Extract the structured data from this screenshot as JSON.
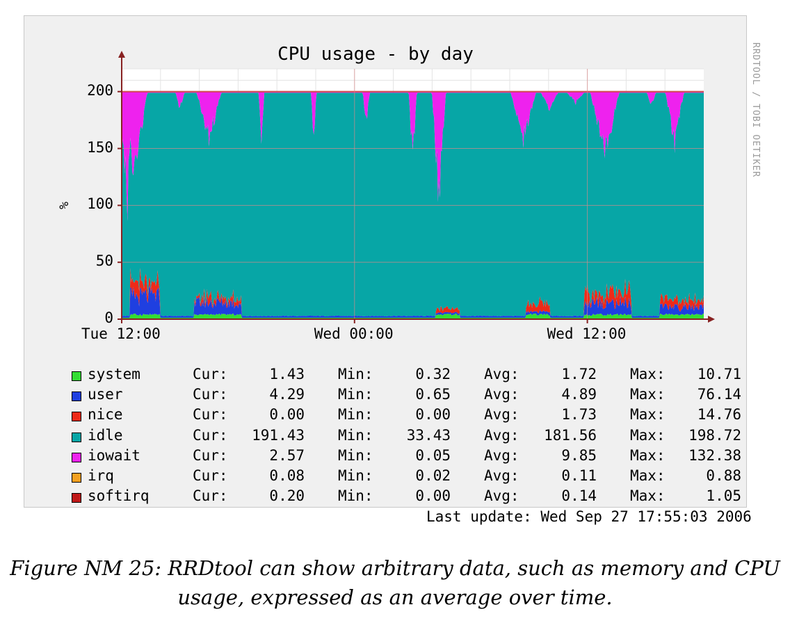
{
  "chart_data": {
    "type": "area",
    "title": "CPU usage - by day",
    "ylabel": "%",
    "watermark": "RRDTOOL / TOBI OETIKER",
    "ylim": [
      0,
      220
    ],
    "yticks": [
      0,
      50,
      100,
      150,
      200
    ],
    "x_range": [
      0,
      100
    ],
    "xticks": [
      {
        "pos": 0,
        "label": "Tue 12:00"
      },
      {
        "pos": 40,
        "label": "Wed 00:00"
      },
      {
        "pos": 80,
        "label": "Wed 12:00"
      }
    ],
    "grid": true,
    "total": 200,
    "series": [
      {
        "name": "system",
        "color": "#33dd33",
        "cur": "1.43",
        "min": "0.32",
        "avg": "1.72",
        "max": "10.71"
      },
      {
        "name": "user",
        "color": "#1f3fe0",
        "cur": "4.29",
        "min": "0.65",
        "avg": "4.89",
        "max": "76.14"
      },
      {
        "name": "nice",
        "color": "#ee2a18",
        "cur": "0.00",
        "min": "0.00",
        "avg": "1.73",
        "max": "14.76"
      },
      {
        "name": "idle",
        "color": "#07a6a6",
        "cur": "191.43",
        "min": "33.43",
        "avg": "181.56",
        "max": "198.72"
      },
      {
        "name": "iowait",
        "color": "#ee22ee",
        "cur": "2.57",
        "min": "0.05",
        "avg": "9.85",
        "max": "132.38"
      },
      {
        "name": "irq",
        "color": "#f4a020",
        "cur": "0.08",
        "min": "0.02",
        "avg": "0.11",
        "max": "0.88"
      },
      {
        "name": "softirq",
        "color": "#c01818",
        "cur": "0.20",
        "min": "0.00",
        "avg": "0.14",
        "max": "1.05"
      }
    ],
    "iowait_spikes": [
      {
        "x": 0.5,
        "depth": 75,
        "w": 1.4
      },
      {
        "x": 1.0,
        "depth": 130,
        "w": 0.6
      },
      {
        "x": 2.2,
        "depth": 95,
        "w": 2.2
      },
      {
        "x": 3.5,
        "depth": 20,
        "w": 0.8
      },
      {
        "x": 10.0,
        "depth": 18,
        "w": 0.8
      },
      {
        "x": 15.0,
        "depth": 50,
        "w": 2.2
      },
      {
        "x": 24.0,
        "depth": 50,
        "w": 0.5
      },
      {
        "x": 33.0,
        "depth": 50,
        "w": 0.5
      },
      {
        "x": 42.0,
        "depth": 35,
        "w": 0.6
      },
      {
        "x": 50.0,
        "depth": 75,
        "w": 0.7
      },
      {
        "x": 54.5,
        "depth": 118,
        "w": 1.2
      },
      {
        "x": 69.0,
        "depth": 50,
        "w": 2.2
      },
      {
        "x": 73.5,
        "depth": 18,
        "w": 1.6
      },
      {
        "x": 78.0,
        "depth": 12,
        "w": 1.6
      },
      {
        "x": 83.0,
        "depth": 70,
        "w": 2.5
      },
      {
        "x": 91.0,
        "depth": 15,
        "w": 0.8
      },
      {
        "x": 95.0,
        "depth": 55,
        "w": 1.6
      }
    ],
    "activity_bursts": [
      {
        "x": 1.5,
        "w": 5.0,
        "user": 20,
        "nice": 16
      },
      {
        "x": 12.5,
        "w": 8.0,
        "user": 13,
        "nice": 7
      },
      {
        "x": 54.0,
        "w": 4.0,
        "user": 1,
        "nice": 5
      },
      {
        "x": 69.5,
        "w": 4.0,
        "user": 3,
        "nice": 11
      },
      {
        "x": 79.5,
        "w": 8.0,
        "user": 13,
        "nice": 15
      },
      {
        "x": 92.5,
        "w": 8.0,
        "user": 8,
        "nice": 9
      }
    ]
  },
  "legend_labels": {
    "cur": "Cur:",
    "min": "Min:",
    "avg": "Avg:",
    "max": "Max:"
  },
  "last_update": "Last update: Wed Sep 27 17:55:03 2006",
  "caption_line1": "Figure NM 25: RRDtool can show arbitrary data, such as memory and CPU",
  "caption_line2": "usage, expressed as an average over time."
}
